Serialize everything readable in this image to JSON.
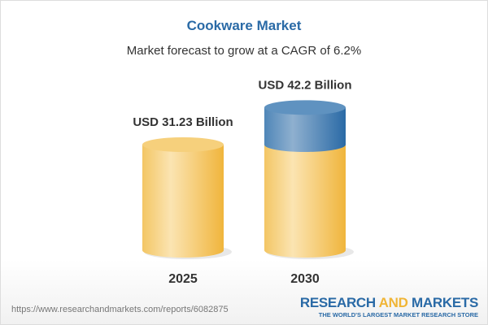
{
  "header": {
    "title": "Cookware Market",
    "subtitle": "Market forecast to grow at a CAGR of 6.2%"
  },
  "chart_data": {
    "type": "bar",
    "style": "3d-cylinder",
    "categories": [
      "2025",
      "2030"
    ],
    "values": [
      31.23,
      42.2
    ],
    "data_labels": [
      "USD 31.23 Billion",
      "USD 42.2 Billion"
    ],
    "unit": "USD Billion",
    "growth_segment_note": "2030 bar top portion above 2025 value shown in blue",
    "colors": {
      "base": "#f3c664",
      "growth": "#4f86b8"
    }
  },
  "footer": {
    "url": "https://www.researchandmarkets.com/reports/6082875",
    "logo_part1": "RESEARCH ",
    "logo_part2": "AND",
    "logo_part3": " MARKETS",
    "tagline": "THE WORLD'S LARGEST MARKET RESEARCH STORE"
  }
}
